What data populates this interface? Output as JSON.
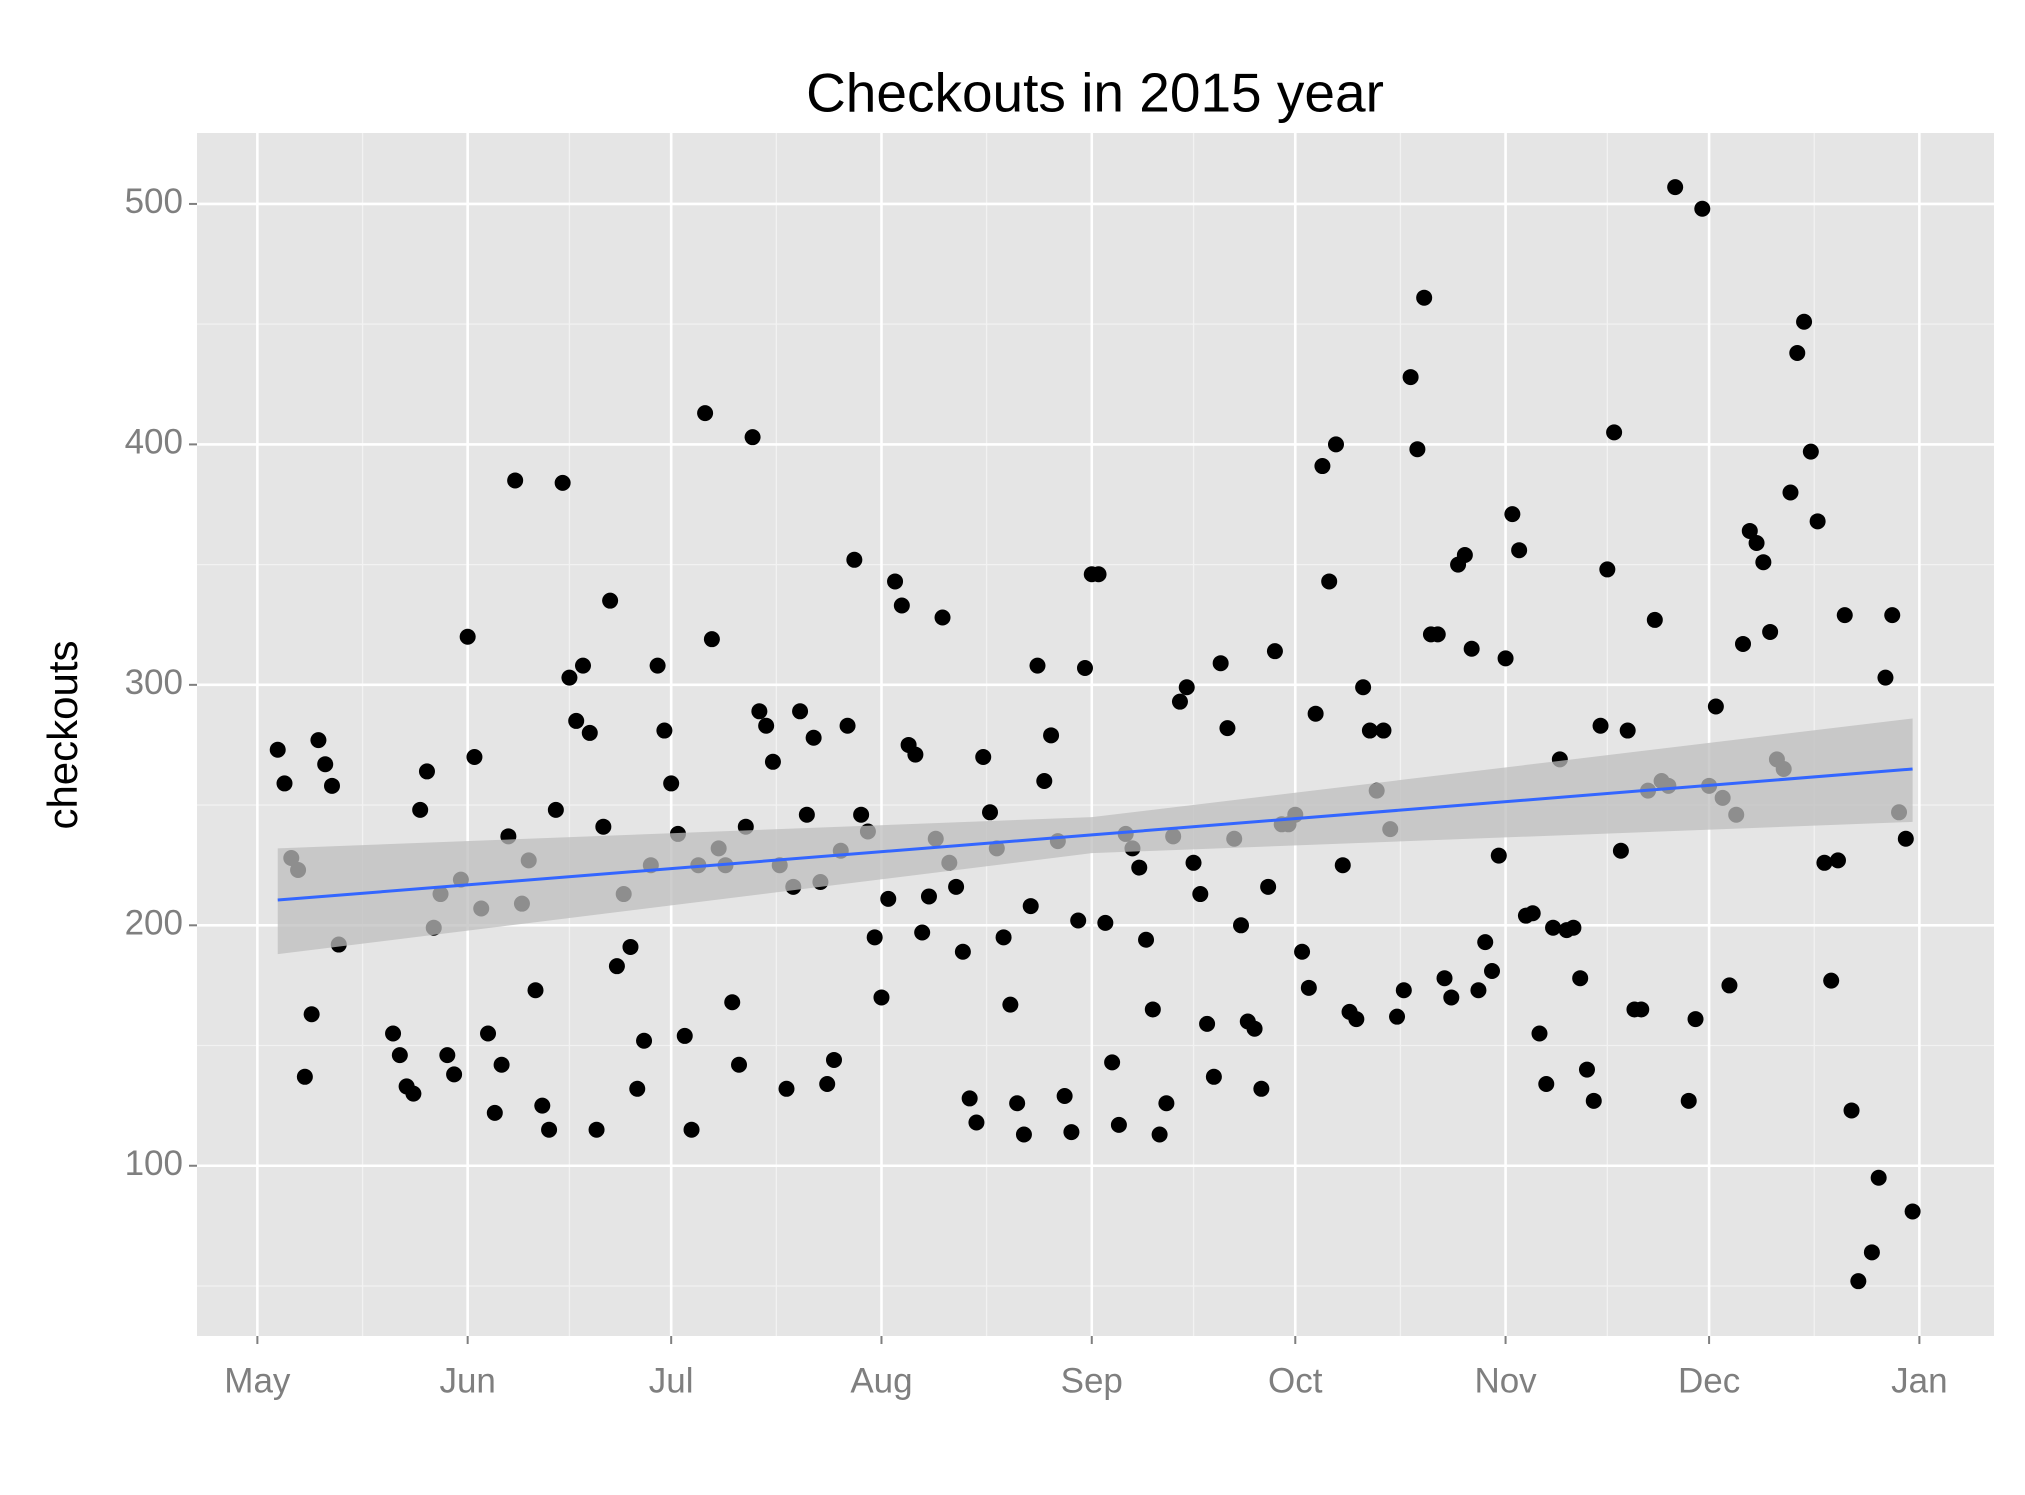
{
  "chart_data": {
    "type": "scatter",
    "title": "Checkouts in 2015 year",
    "ylabel": "checkouts",
    "x": [
      3,
      4,
      5,
      6,
      7,
      8,
      9,
      10,
      11,
      12,
      20,
      21,
      22,
      23,
      24,
      25,
      26,
      27,
      28,
      29,
      30,
      31,
      32,
      33,
      34,
      35,
      36,
      37,
      38,
      39,
      40,
      41,
      42,
      43,
      44,
      45,
      46,
      47,
      48,
      49,
      50,
      51,
      52,
      53,
      54,
      55,
      56,
      57,
      58,
      59,
      60,
      61,
      62,
      63,
      64,
      65,
      66,
      67,
      68,
      69,
      70,
      71,
      72,
      73,
      74,
      75,
      76,
      77,
      78,
      79,
      80,
      81,
      82,
      83,
      84,
      85,
      86,
      87,
      88,
      89,
      90,
      91,
      92,
      93,
      94,
      95,
      96,
      97,
      98,
      99,
      100,
      101,
      102,
      103,
      104,
      105,
      106,
      107,
      108,
      109,
      110,
      111,
      112,
      113,
      114,
      115,
      116,
      117,
      118,
      119,
      120,
      121,
      122,
      123,
      124,
      125,
      126,
      127,
      128,
      129,
      130,
      131,
      132,
      133,
      134,
      135,
      136,
      137,
      138,
      139,
      140,
      141,
      142,
      143,
      144,
      145,
      146,
      147,
      148,
      149,
      150,
      151,
      152,
      153,
      154,
      155,
      156,
      157,
      158,
      159,
      160,
      161,
      162,
      163,
      164,
      165,
      166,
      167,
      168,
      169,
      170,
      171,
      172,
      173,
      174,
      175,
      176,
      177,
      178,
      179,
      180,
      181,
      182,
      183,
      184,
      185,
      186,
      187,
      188,
      189,
      190,
      191,
      192,
      193,
      194,
      195,
      196,
      197,
      198,
      199,
      200,
      201,
      202,
      203,
      204,
      205,
      206,
      207,
      208,
      209,
      211,
      212,
      213,
      214,
      215,
      216,
      217,
      218,
      219,
      220,
      221,
      222,
      223,
      224,
      225,
      226,
      227,
      228,
      229,
      230,
      231,
      232,
      233,
      234,
      235,
      236,
      238,
      239,
      240,
      241,
      242,
      243,
      244
    ],
    "values": [
      273,
      259,
      228,
      223,
      137,
      163,
      277,
      267,
      258,
      192,
      155,
      146,
      133,
      130,
      248,
      264,
      199,
      213,
      146,
      138,
      219,
      320,
      270,
      207,
      155,
      122,
      142,
      237,
      385,
      209,
      227,
      173,
      125,
      115,
      248,
      384,
      303,
      285,
      308,
      280,
      115,
      241,
      335,
      183,
      213,
      191,
      132,
      152,
      225,
      308,
      281,
      259,
      238,
      154,
      115,
      225,
      413,
      319,
      232,
      225,
      168,
      142,
      241,
      403,
      289,
      283,
      268,
      225,
      132,
      216,
      289,
      246,
      278,
      218,
      134,
      144,
      231,
      283,
      352,
      246,
      239,
      195,
      170,
      211,
      343,
      333,
      275,
      271,
      197,
      212,
      236,
      328,
      226,
      216,
      189,
      128,
      118,
      270,
      247,
      232,
      195,
      167,
      126,
      113,
      208,
      308,
      260,
      279,
      235,
      129,
      114,
      202,
      307,
      346,
      346,
      201,
      143,
      117,
      238,
      232,
      224,
      194,
      165,
      113,
      126,
      237,
      293,
      299,
      226,
      213,
      159,
      137,
      309,
      282,
      236,
      200,
      160,
      157,
      132,
      216,
      314,
      242,
      242,
      246,
      189,
      174,
      288,
      391,
      343,
      400,
      225,
      164,
      161,
      299,
      281,
      256,
      281,
      240,
      162,
      173,
      428,
      398,
      461,
      321,
      321,
      178,
      170,
      350,
      354,
      315,
      173,
      193,
      181,
      229,
      311,
      371,
      356,
      204,
      205,
      155,
      134,
      199,
      269,
      198,
      199,
      178,
      140,
      127,
      283,
      348,
      405,
      231,
      281,
      165,
      165,
      256,
      327,
      260,
      258,
      507,
      127,
      161,
      498,
      258,
      291,
      253,
      175,
      246,
      317,
      364,
      359,
      351,
      322,
      269,
      265,
      380,
      438,
      451,
      397,
      368,
      226,
      177,
      227,
      329,
      123,
      52,
      64,
      95,
      303,
      329,
      247,
      236,
      81
    ],
    "color": "#000000",
    "trend": {
      "x": [
        3,
        123,
        244
      ],
      "values": [
        210.5,
        237.6,
        265
      ],
      "lower": [
        188,
        230,
        243
      ],
      "upper": [
        232,
        245,
        286
      ],
      "color": "#3366ff",
      "band_color": "#bdbdbd"
    },
    "xlim": [
      -8.9,
      256
    ],
    "ylim": [
      29.2,
      529.5
    ],
    "xticks": [
      {
        "value": 0,
        "label": "May"
      },
      {
        "value": 31,
        "label": "Jun"
      },
      {
        "value": 61,
        "label": "Jul"
      },
      {
        "value": 92,
        "label": "Aug"
      },
      {
        "value": 123,
        "label": "Sep"
      },
      {
        "value": 153,
        "label": "Oct"
      },
      {
        "value": 184,
        "label": "Nov"
      },
      {
        "value": 214,
        "label": "Dec"
      },
      {
        "value": 245,
        "label": "Jan"
      }
    ],
    "yticks": [
      100,
      200,
      300,
      400,
      500
    ],
    "grid": true
  }
}
